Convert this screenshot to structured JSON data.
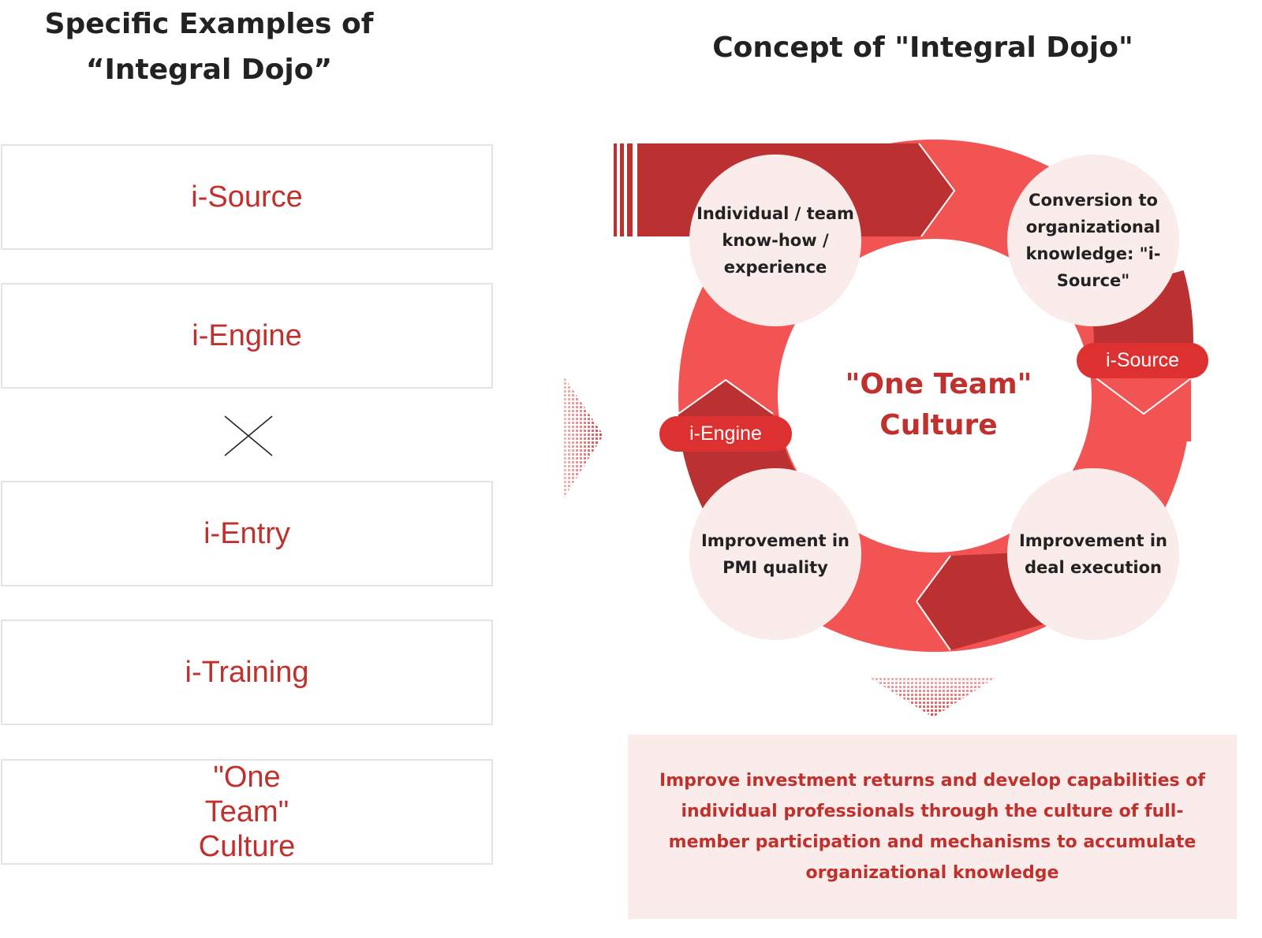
{
  "left": {
    "title": "Specific Examples of “Integral Dojo”",
    "items": [
      "i-Source",
      "i-Engine",
      "i-Entry",
      "i-Training",
      "\"One Team\" Culture"
    ],
    "separator_icon": "times-icon"
  },
  "right": {
    "title": "Concept of \"Integral Dojo\"",
    "center": "\"One Team\" Culture",
    "nodes": [
      "Individual / team know-how / experience",
      "Conversion to organizational knowledge: \"i-Source\"",
      "Improvement in deal execution",
      "Improvement in PMI quality"
    ],
    "pills": [
      "i-Source",
      "i-Engine"
    ],
    "result": "Improve investment returns and develop capabilities of individual professionals through the culture of full-member participation and mechanisms to accumulate organizational knowledge"
  },
  "colors": {
    "accent": "#c0302c",
    "ring_light": "#f25454",
    "ring_dark": "#bb3030",
    "node_bg": "#f9ecea",
    "pill": "#dd3030"
  }
}
